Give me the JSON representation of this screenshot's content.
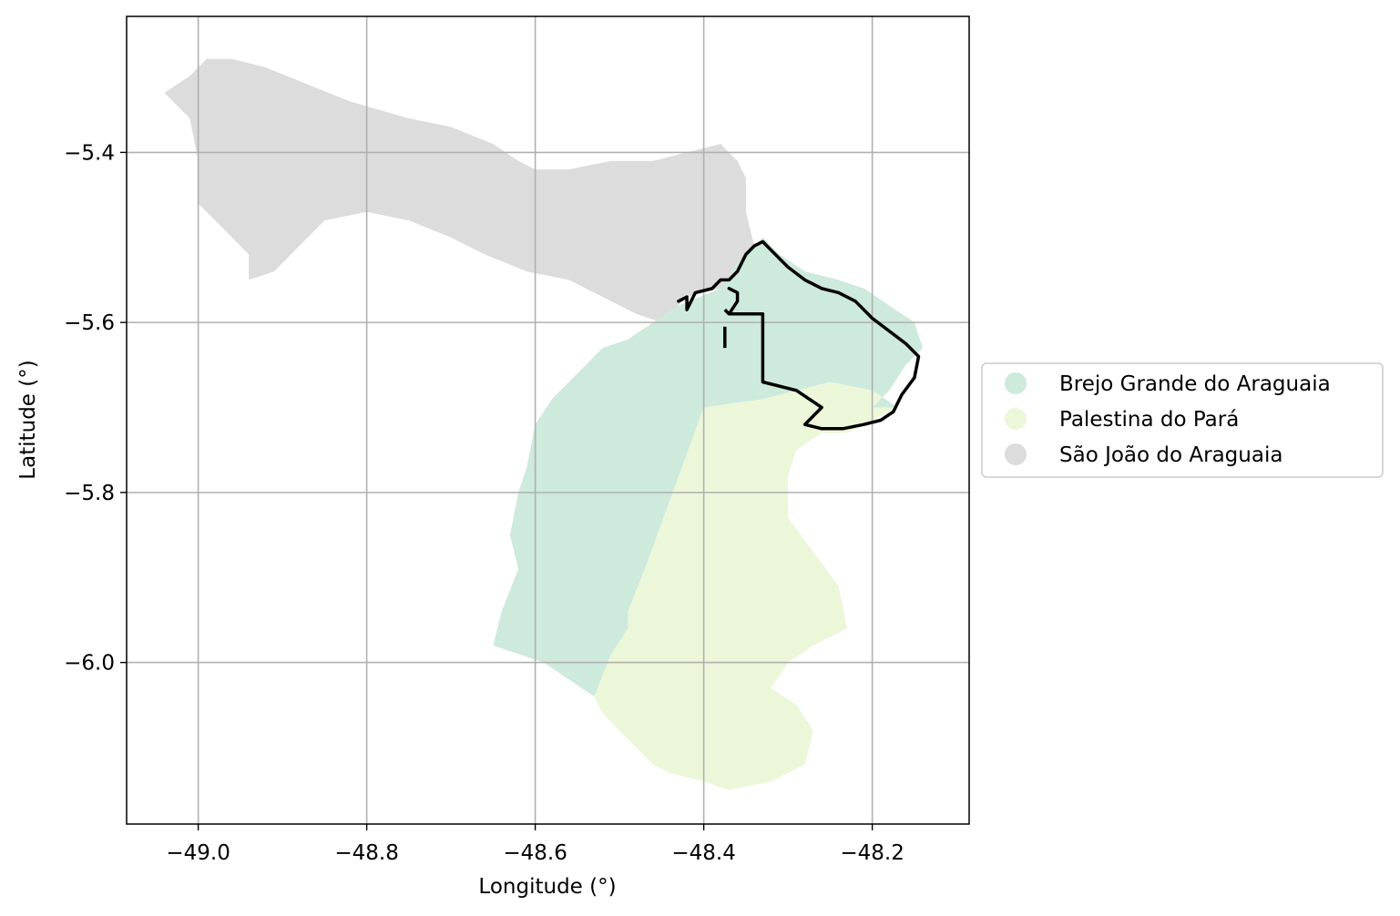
{
  "map": {
    "xlabel": "Longitude (°)",
    "ylabel": "Latitude (°)",
    "xlim": [
      -49.085,
      -48.085
    ],
    "ylim": [
      -6.19,
      -5.24
    ],
    "x_ticks": [
      -49.0,
      -48.8,
      -48.6,
      -48.4,
      -48.2
    ],
    "x_tick_labels": [
      "−49.0",
      "−48.8",
      "−48.6",
      "−48.4",
      "−48.2"
    ],
    "y_ticks": [
      -5.4,
      -5.6,
      -5.8,
      -6.0
    ],
    "y_tick_labels": [
      "−5.4",
      "−5.6",
      "−5.8",
      "−6.0"
    ],
    "grid": true,
    "legend_position": "outside-right",
    "legend": [
      {
        "label": "Brejo Grande do Araguaia",
        "color": "#cdeadc"
      },
      {
        "label": "Palestina do Pará",
        "color": "#ecf7da"
      },
      {
        "label": "São João do Araguaia",
        "color": "#dcdcdc"
      }
    ],
    "regions": [
      {
        "name": "São João do Araguaia",
        "color": "#dcdcdc",
        "coords": [
          [
            -49.04,
            -5.33
          ],
          [
            -49.01,
            -5.31
          ],
          [
            -48.99,
            -5.29
          ],
          [
            -48.96,
            -5.29
          ],
          [
            -48.92,
            -5.3
          ],
          [
            -48.87,
            -5.32
          ],
          [
            -48.82,
            -5.34
          ],
          [
            -48.75,
            -5.36
          ],
          [
            -48.7,
            -5.37
          ],
          [
            -48.65,
            -5.39
          ],
          [
            -48.62,
            -5.41
          ],
          [
            -48.6,
            -5.42
          ],
          [
            -48.56,
            -5.42
          ],
          [
            -48.51,
            -5.41
          ],
          [
            -48.46,
            -5.41
          ],
          [
            -48.42,
            -5.4
          ],
          [
            -48.38,
            -5.39
          ],
          [
            -48.36,
            -5.41
          ],
          [
            -48.35,
            -5.43
          ],
          [
            -48.35,
            -5.47
          ],
          [
            -48.34,
            -5.51
          ],
          [
            -48.36,
            -5.53
          ],
          [
            -48.38,
            -5.56
          ],
          [
            -48.42,
            -5.57
          ],
          [
            -48.45,
            -5.6
          ],
          [
            -48.48,
            -5.59
          ],
          [
            -48.52,
            -5.57
          ],
          [
            -48.56,
            -5.55
          ],
          [
            -48.61,
            -5.54
          ],
          [
            -48.66,
            -5.52
          ],
          [
            -48.7,
            -5.5
          ],
          [
            -48.75,
            -5.48
          ],
          [
            -48.8,
            -5.47
          ],
          [
            -48.85,
            -5.48
          ],
          [
            -48.88,
            -5.51
          ],
          [
            -48.91,
            -5.54
          ],
          [
            -48.94,
            -5.55
          ],
          [
            -48.94,
            -5.52
          ],
          [
            -48.97,
            -5.49
          ],
          [
            -49.0,
            -5.46
          ],
          [
            -49.0,
            -5.41
          ],
          [
            -49.01,
            -5.36
          ],
          [
            -49.03,
            -5.34
          ]
        ]
      },
      {
        "name": "Palestina do Pará",
        "color": "#ecf7da",
        "coords": [
          [
            -48.4,
            -5.7
          ],
          [
            -48.33,
            -5.69
          ],
          [
            -48.25,
            -5.67
          ],
          [
            -48.2,
            -5.68
          ],
          [
            -48.17,
            -5.7
          ],
          [
            -48.23,
            -5.73
          ],
          [
            -48.26,
            -5.73
          ],
          [
            -48.29,
            -5.75
          ],
          [
            -48.3,
            -5.78
          ],
          [
            -48.3,
            -5.83
          ],
          [
            -48.27,
            -5.87
          ],
          [
            -48.24,
            -5.91
          ],
          [
            -48.23,
            -5.96
          ],
          [
            -48.27,
            -5.98
          ],
          [
            -48.3,
            -6.0
          ],
          [
            -48.32,
            -6.03
          ],
          [
            -48.29,
            -6.05
          ],
          [
            -48.27,
            -6.08
          ],
          [
            -48.28,
            -6.12
          ],
          [
            -48.32,
            -6.14
          ],
          [
            -48.37,
            -6.15
          ],
          [
            -48.4,
            -6.14
          ],
          [
            -48.44,
            -6.13
          ],
          [
            -48.46,
            -6.12
          ],
          [
            -48.49,
            -6.09
          ],
          [
            -48.52,
            -6.06
          ],
          [
            -48.53,
            -6.04
          ],
          [
            -48.51,
            -5.99
          ],
          [
            -48.49,
            -5.96
          ],
          [
            -48.49,
            -5.94
          ],
          [
            -48.47,
            -5.89
          ]
        ]
      },
      {
        "name": "Brejo Grande do Araguaia",
        "color": "#cdeadc",
        "coords": [
          [
            -48.33,
            -5.5
          ],
          [
            -48.31,
            -5.52
          ],
          [
            -48.28,
            -5.54
          ],
          [
            -48.24,
            -5.55
          ],
          [
            -48.21,
            -5.56
          ],
          [
            -48.18,
            -5.58
          ],
          [
            -48.15,
            -5.6
          ],
          [
            -48.14,
            -5.63
          ],
          [
            -48.16,
            -5.65
          ],
          [
            -48.18,
            -5.68
          ],
          [
            -48.2,
            -5.7
          ],
          [
            -48.17,
            -5.7
          ],
          [
            -48.2,
            -5.68
          ],
          [
            -48.25,
            -5.67
          ],
          [
            -48.33,
            -5.69
          ],
          [
            -48.4,
            -5.7
          ],
          [
            -48.47,
            -5.89
          ],
          [
            -48.49,
            -5.94
          ],
          [
            -48.49,
            -5.96
          ],
          [
            -48.51,
            -5.99
          ],
          [
            -48.53,
            -6.04
          ],
          [
            -48.56,
            -6.02
          ],
          [
            -48.59,
            -6.0
          ],
          [
            -48.62,
            -5.99
          ],
          [
            -48.65,
            -5.98
          ],
          [
            -48.64,
            -5.94
          ],
          [
            -48.62,
            -5.89
          ],
          [
            -48.63,
            -5.85
          ],
          [
            -48.62,
            -5.8
          ],
          [
            -48.61,
            -5.77
          ],
          [
            -48.6,
            -5.72
          ],
          [
            -48.58,
            -5.69
          ],
          [
            -48.55,
            -5.66
          ],
          [
            -48.52,
            -5.63
          ],
          [
            -48.49,
            -5.62
          ],
          [
            -48.46,
            -5.6
          ],
          [
            -48.43,
            -5.58
          ],
          [
            -48.38,
            -5.56
          ],
          [
            -48.36,
            -5.53
          ],
          [
            -48.34,
            -5.51
          ]
        ]
      }
    ],
    "boundary": {
      "color": "#000000",
      "outline": [
        [
          -48.43,
          -5.575
        ],
        [
          -48.42,
          -5.57
        ],
        [
          -48.42,
          -5.585
        ],
        [
          -48.41,
          -5.565
        ],
        [
          -48.39,
          -5.56
        ],
        [
          -48.38,
          -5.55
        ],
        [
          -48.37,
          -5.55
        ],
        [
          -48.36,
          -5.54
        ],
        [
          -48.35,
          -5.52
        ],
        [
          -48.34,
          -5.51
        ],
        [
          -48.33,
          -5.505
        ],
        [
          -48.32,
          -5.515
        ],
        [
          -48.3,
          -5.535
        ],
        [
          -48.28,
          -5.55
        ],
        [
          -48.26,
          -5.56
        ],
        [
          -48.24,
          -5.565
        ],
        [
          -48.22,
          -5.575
        ],
        [
          -48.2,
          -5.595
        ],
        [
          -48.18,
          -5.61
        ],
        [
          -48.16,
          -5.625
        ],
        [
          -48.145,
          -5.64
        ],
        [
          -48.15,
          -5.665
        ],
        [
          -48.165,
          -5.685
        ],
        [
          -48.175,
          -5.705
        ],
        [
          -48.19,
          -5.715
        ],
        [
          -48.21,
          -5.72
        ],
        [
          -48.235,
          -5.725
        ],
        [
          -48.26,
          -5.725
        ],
        [
          -48.28,
          -5.72
        ],
        [
          -48.26,
          -5.7
        ],
        [
          -48.29,
          -5.68
        ],
        [
          -48.33,
          -5.67
        ],
        [
          -48.33,
          -5.59
        ],
        [
          -48.37,
          -5.59
        ],
        [
          -48.36,
          -5.575
        ],
        [
          -48.36,
          -5.565
        ],
        [
          -48.37,
          -5.56
        ]
      ],
      "dashes": [
        [
          [
            -48.375,
            -5.605
          ],
          [
            -48.375,
            -5.63
          ]
        ],
        [
          [
            -48.375,
            -5.585
          ],
          [
            -48.37,
            -5.59
          ]
        ]
      ]
    }
  }
}
